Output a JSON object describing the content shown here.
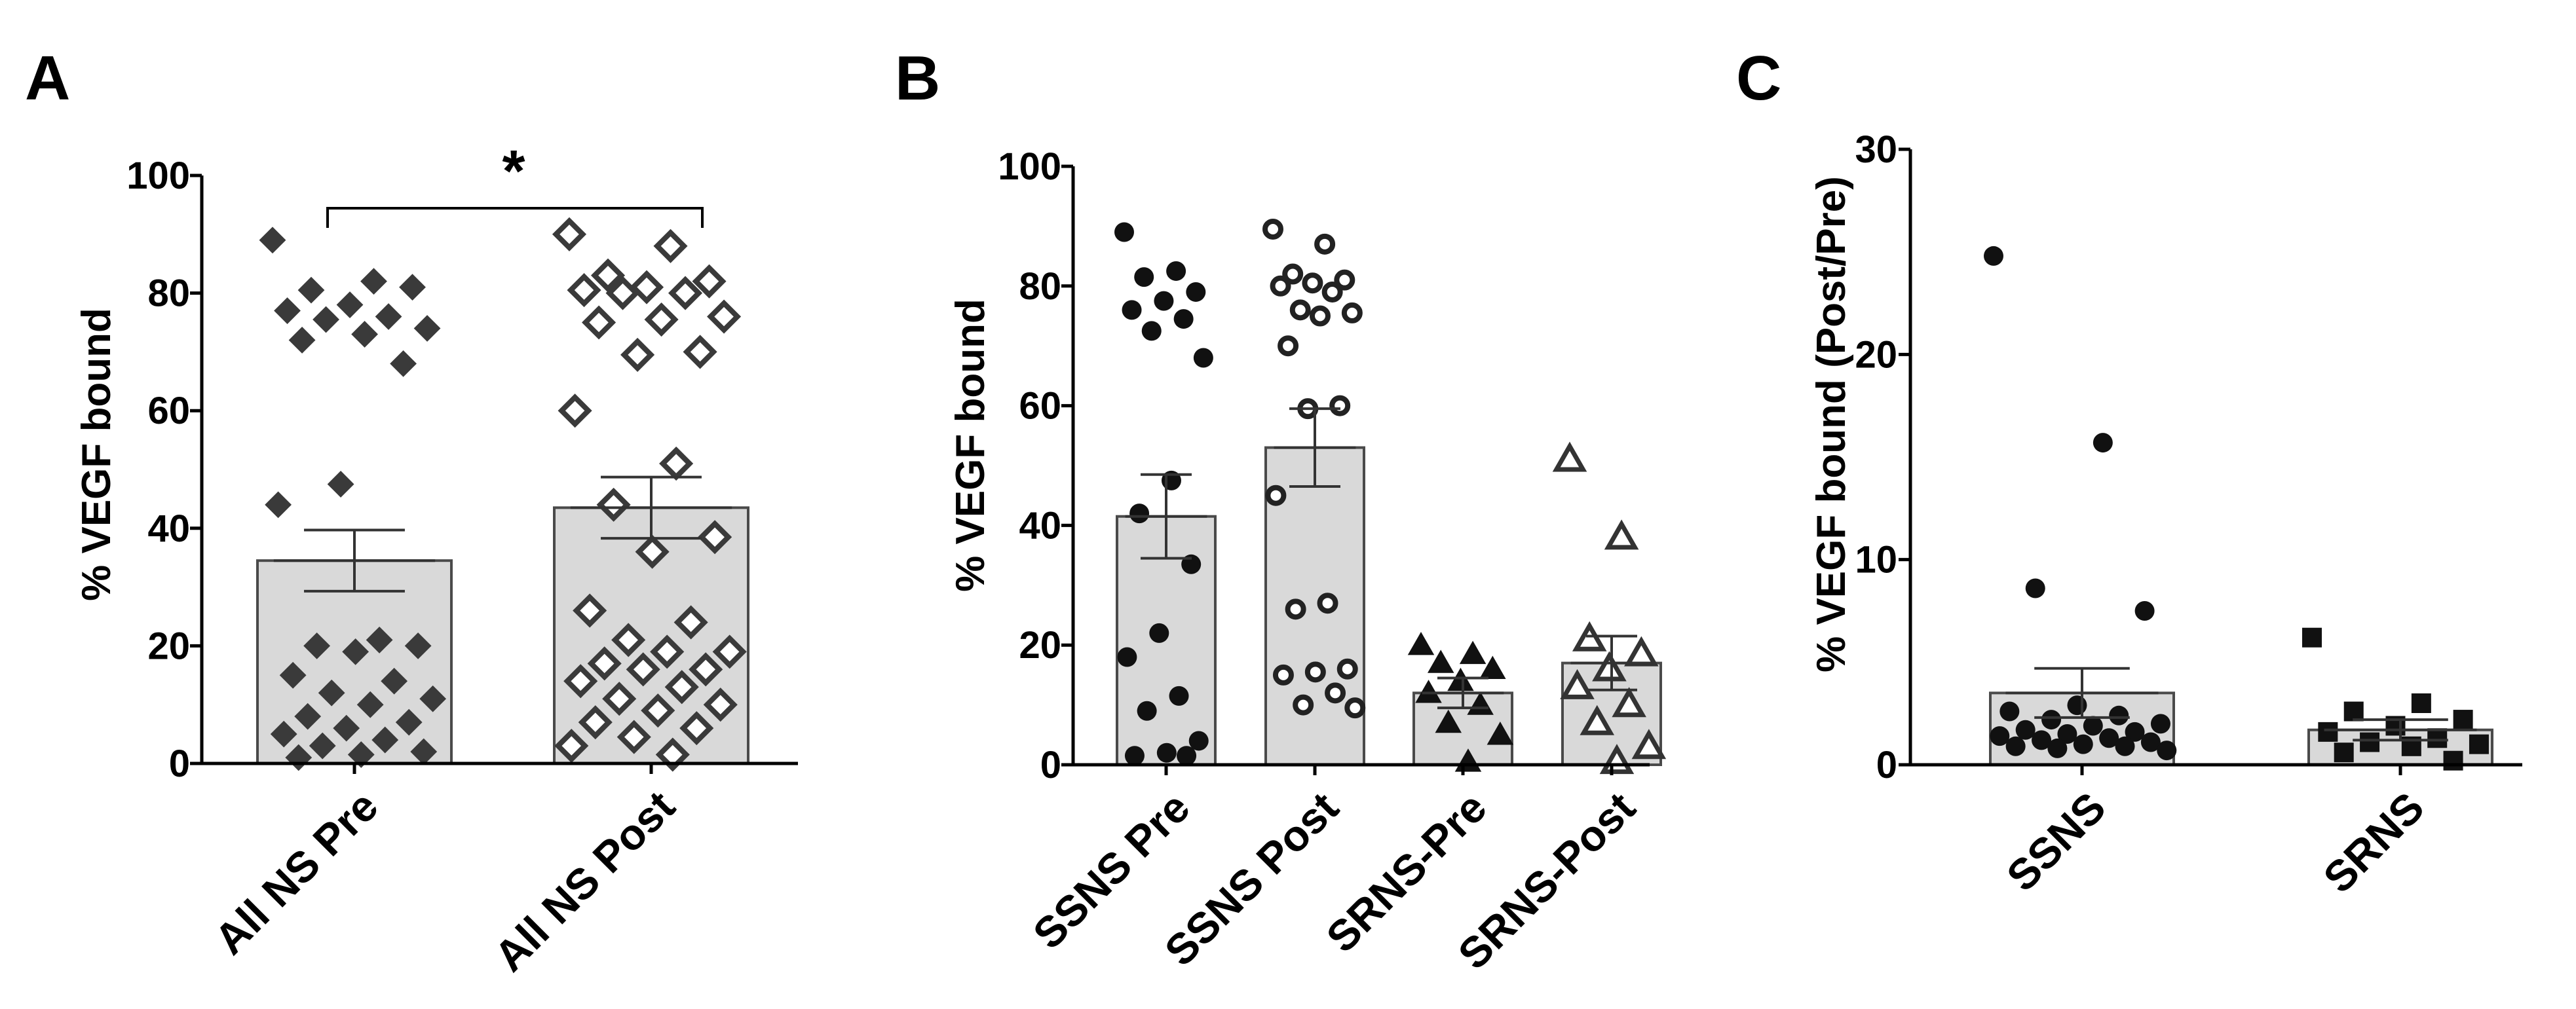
{
  "figure": {
    "panels": [
      {
        "letter": "A"
      },
      {
        "letter": "B"
      },
      {
        "letter": "C"
      }
    ]
  },
  "chart_data": [
    {
      "panel": "A",
      "type": "bar",
      "title": "",
      "xlabel": "",
      "ylabel": "% VEGF bound",
      "ylim": [
        0,
        100
      ],
      "yticks": [
        0,
        20,
        40,
        60,
        80,
        100
      ],
      "categories": [
        "All NS Pre",
        "All NS Post"
      ],
      "values": [
        34.5,
        43.5
      ],
      "sem": [
        5.2,
        5.2
      ],
      "markers": [
        "filled-diamond",
        "open-diamond"
      ],
      "points": [
        [
          89,
          82,
          80.5,
          81,
          78,
          77,
          76,
          75.5,
          74,
          73,
          72,
          68,
          47.5,
          44,
          21,
          20,
          20,
          19,
          15,
          14,
          12,
          11,
          10,
          8,
          7,
          6,
          5,
          4,
          3,
          2,
          1.5,
          1
        ],
        [
          90,
          88,
          83,
          82,
          81,
          80.5,
          80,
          80,
          76,
          75.5,
          75,
          70,
          69.5,
          60,
          51,
          44,
          38.5,
          36,
          26,
          24,
          21,
          19,
          19,
          17,
          16,
          16,
          14,
          13,
          11,
          10,
          9,
          7,
          6,
          4.5,
          3,
          1.5
        ]
      ],
      "annotations": [
        {
          "text": "*",
          "between": [
            "All NS Pre",
            "All NS Post"
          ]
        }
      ]
    },
    {
      "panel": "B",
      "type": "bar",
      "title": "",
      "xlabel": "",
      "ylabel": "% VEGF bound",
      "ylim": [
        0,
        100
      ],
      "yticks": [
        0,
        20,
        40,
        60,
        80,
        100
      ],
      "categories": [
        "SSNS Pre",
        "SSNS Post",
        "SRNS-Pre",
        "SRNS-Post"
      ],
      "values": [
        41.5,
        53,
        12,
        17
      ],
      "sem": [
        7,
        6.5,
        2.5,
        4.5
      ],
      "markers": [
        "filled-circle",
        "open-circle",
        "filled-triangle",
        "open-triangle"
      ],
      "points": [
        [
          89,
          82.5,
          81.5,
          79,
          77.5,
          76,
          74.5,
          72.5,
          68,
          47.5,
          42,
          33.5,
          22,
          18,
          11.5,
          9,
          4,
          2,
          1.5,
          1.5
        ],
        [
          89.5,
          87,
          82,
          81,
          80.5,
          80,
          79,
          76,
          75.5,
          75,
          70,
          60,
          59.5,
          45,
          27,
          26,
          16,
          15.5,
          15,
          12,
          10,
          9.5
        ],
        [
          20,
          18.5,
          17,
          16,
          14,
          12,
          10,
          7,
          5,
          0.5
        ],
        [
          51,
          38,
          21,
          18.5,
          16,
          13,
          10,
          7,
          3,
          0.5
        ]
      ]
    },
    {
      "panel": "C",
      "type": "bar",
      "title": "",
      "xlabel": "",
      "ylabel": "% VEGF bound (Post/Pre)",
      "ylim": [
        0,
        30
      ],
      "yticks": [
        0,
        10,
        20,
        30
      ],
      "categories": [
        "SSNS",
        "SRNS"
      ],
      "values": [
        3.5,
        1.7
      ],
      "sem": [
        1.2,
        0.5
      ],
      "markers": [
        "filled-circle",
        "filled-square"
      ],
      "points": [
        [
          24.8,
          15.7,
          8.6,
          7.5,
          2.9,
          2.6,
          2.4,
          2.2,
          2.0,
          1.9,
          1.7,
          1.6,
          1.5,
          1.4,
          1.3,
          1.2,
          1.1,
          1.0,
          0.9,
          0.9,
          0.8,
          0.7
        ],
        [
          6.2,
          3.0,
          2.6,
          2.2,
          1.9,
          1.6,
          1.3,
          1.1,
          1.0,
          0.9,
          0.6,
          0.2
        ]
      ]
    }
  ]
}
